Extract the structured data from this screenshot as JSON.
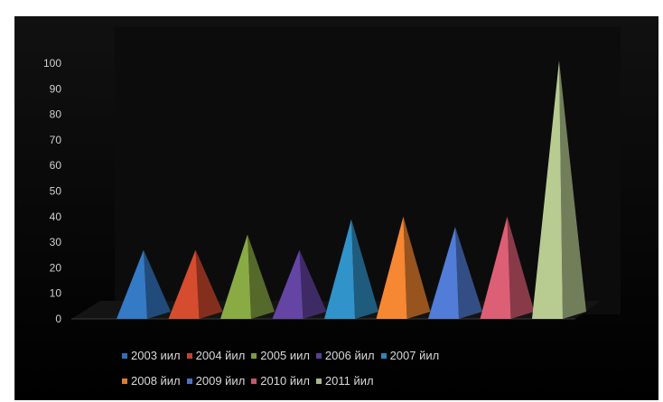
{
  "chart_data": {
    "type": "bar",
    "shape": "pyramid",
    "title": "",
    "xlabel": "",
    "ylabel": "",
    "ylim": [
      0,
      100
    ],
    "y_ticks": [
      0,
      10,
      20,
      30,
      40,
      50,
      60,
      70,
      80,
      90,
      100
    ],
    "grid": false,
    "legend_position": "bottom",
    "series": [
      {
        "name": "2003 иил",
        "value": 27,
        "color": "#2f6fb3"
      },
      {
        "name": "2004 йил",
        "value": 27,
        "color": "#c2452b"
      },
      {
        "name": "2005 иил",
        "value": 33,
        "color": "#7d9b3e"
      },
      {
        "name": "2006 йил",
        "value": 27,
        "color": "#5b3f94"
      },
      {
        "name": "2007 йил",
        "value": 39,
        "color": "#2c86b8"
      },
      {
        "name": "2008 йил",
        "value": 40,
        "color": "#e07b2e"
      },
      {
        "name": "2009 йил",
        "value": 36,
        "color": "#4a72c4"
      },
      {
        "name": "2010 йил",
        "value": 40,
        "color": "#c8566a"
      },
      {
        "name": "2011 йил",
        "value": 101,
        "color": "#a7b985"
      }
    ]
  }
}
